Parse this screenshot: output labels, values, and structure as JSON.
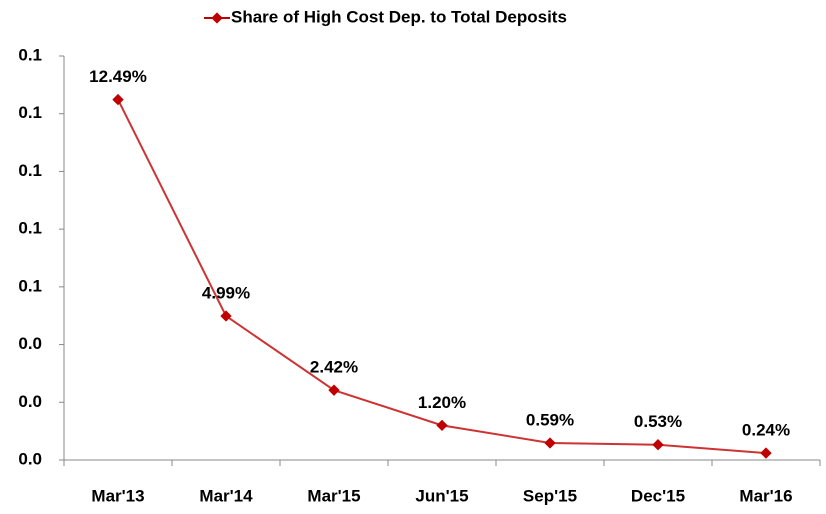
{
  "chart_data": {
    "type": "line",
    "categories": [
      "Mar'13",
      "Mar'14",
      "Mar'15",
      "Jun'15",
      "Sep'15",
      "Dec'15",
      "Mar'16"
    ],
    "series": [
      {
        "name": "Share of High Cost Dep. to Total Deposits",
        "color": "#c00000",
        "values": [
          0.1249,
          0.0499,
          0.0242,
          0.012,
          0.0059,
          0.0053,
          0.0024
        ],
        "value_labels": [
          "12.49%",
          "4.99%",
          "2.42%",
          "1.20%",
          "0.59%",
          "0.53%",
          "0.24%"
        ]
      }
    ],
    "ylim": [
      0,
      0.14
    ],
    "yticks": [
      {
        "value": 0,
        "label": "0.0"
      },
      {
        "value": 0.02,
        "label": "0.0"
      },
      {
        "value": 0.04,
        "label": "0.0"
      },
      {
        "value": 0.06,
        "label": "0.1"
      },
      {
        "value": 0.08,
        "label": "0.1"
      },
      {
        "value": 0.1,
        "label": "0.1"
      },
      {
        "value": 0.12,
        "label": "0.1"
      },
      {
        "value": 0.14,
        "label": "0.1"
      }
    ],
    "legend": "top"
  }
}
